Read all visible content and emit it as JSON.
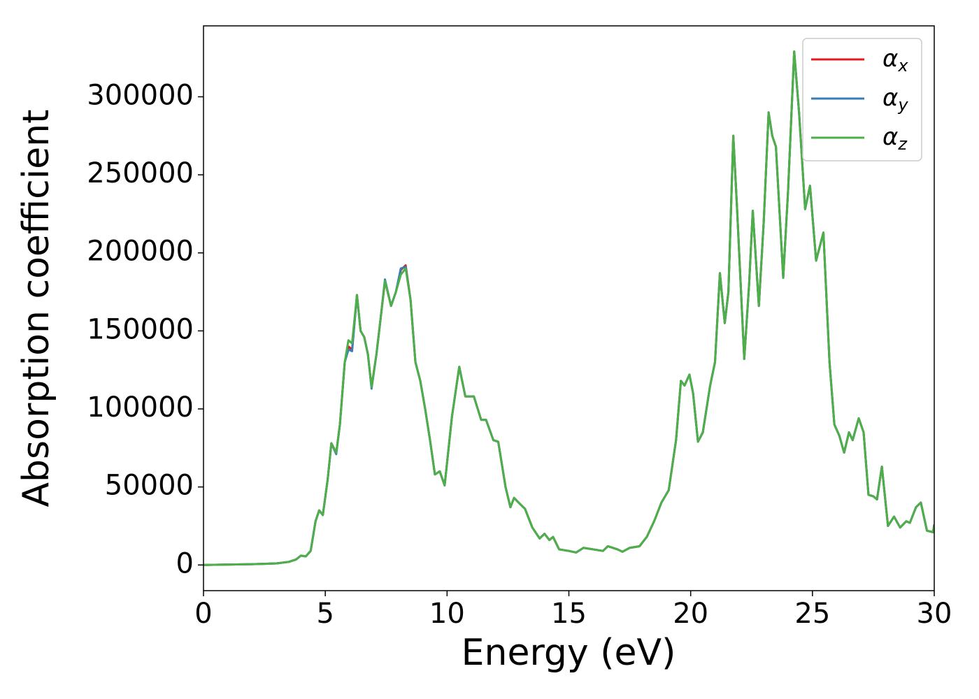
{
  "chart_data": {
    "type": "line",
    "x_label": "Energy (eV)",
    "y_label": "Absorption coefficient",
    "xlim": [
      0,
      30
    ],
    "xticks": [
      0,
      5,
      10,
      15,
      20,
      25,
      30
    ],
    "ylim": [
      -16450,
      345450
    ],
    "yticks": [
      0,
      50000,
      100000,
      150000,
      200000,
      250000,
      300000
    ],
    "legend": "upper right",
    "grid": false,
    "x": [
      0,
      2,
      3,
      3.5,
      3.8,
      4,
      4.2,
      4.4,
      4.6,
      4.75,
      4.9,
      5.1,
      5.25,
      5.45,
      5.6,
      5.8,
      5.95,
      6.1,
      6.3,
      6.45,
      6.6,
      6.75,
      6.9,
      7.1,
      7.25,
      7.45,
      7.7,
      7.9,
      8.1,
      8.3,
      8.5,
      8.7,
      8.9,
      9.1,
      9.3,
      9.5,
      9.7,
      9.9,
      10.2,
      10.5,
      10.75,
      11.1,
      11.4,
      11.6,
      11.9,
      12.1,
      12.4,
      12.6,
      12.75,
      13,
      13.2,
      13.5,
      13.8,
      14,
      14.2,
      14.35,
      14.6,
      15,
      15.3,
      15.6,
      16,
      16.4,
      16.6,
      17,
      17.2,
      17.5,
      17.9,
      18.2,
      18.5,
      18.8,
      19.1,
      19.4,
      19.6,
      19.75,
      19.95,
      20.1,
      20.3,
      20.5,
      20.8,
      21,
      21.2,
      21.4,
      21.55,
      21.75,
      21.9,
      22.2,
      22.4,
      22.55,
      22.8,
      23,
      23.2,
      23.35,
      23.5,
      23.8,
      24,
      24.25,
      24.45,
      24.7,
      24.9,
      25.15,
      25.45,
      25.7,
      25.9,
      26.1,
      26.3,
      26.5,
      26.65,
      26.9,
      27.1,
      27.3,
      27.5,
      27.65,
      27.85,
      28.1,
      28.35,
      28.6,
      28.85,
      29,
      29.25,
      29.45,
      29.7,
      29.95,
      30
    ],
    "series": [
      {
        "name": "αx",
        "color": "#e41a1c",
        "values": [
          0,
          500,
          1000,
          2000,
          3500,
          6000,
          5500,
          9000,
          28000,
          35000,
          32000,
          55000,
          78000,
          72000,
          90000,
          130000,
          140000,
          138000,
          173000,
          150000,
          146000,
          135000,
          114000,
          135000,
          155000,
          182000,
          166000,
          175000,
          189000,
          192000,
          170000,
          130000,
          118000,
          100000,
          80000,
          58000,
          60000,
          51000,
          95000,
          127000,
          108000,
          108000,
          93000,
          93000,
          80000,
          79000,
          50000,
          37000,
          43000,
          39000,
          36000,
          24000,
          17000,
          20000,
          16000,
          18000,
          10000,
          9000,
          8000,
          11000,
          10000,
          9000,
          12000,
          10000,
          8500,
          11000,
          12000,
          18000,
          28000,
          40000,
          48000,
          80000,
          118000,
          115000,
          122000,
          110000,
          79000,
          85000,
          115000,
          130000,
          187000,
          155000,
          175000,
          275000,
          230000,
          132000,
          180000,
          227000,
          166000,
          220000,
          290000,
          275000,
          268000,
          184000,
          240000,
          329000,
          290000,
          228000,
          243000,
          195000,
          213000,
          130000,
          90000,
          83000,
          72000,
          85000,
          80000,
          94000,
          85000,
          45000,
          44000,
          42000,
          63000,
          25000,
          31000,
          24000,
          28000,
          27000,
          37000,
          40000,
          22000,
          21000,
          26000
        ]
      },
      {
        "name": "αy",
        "color": "#377eb8",
        "values": [
          0,
          500,
          1000,
          2000,
          3500,
          6000,
          5500,
          9000,
          28000,
          35000,
          32000,
          55000,
          78000,
          71000,
          90000,
          130000,
          138000,
          137000,
          173000,
          150000,
          146000,
          135000,
          113000,
          135000,
          155000,
          183000,
          166000,
          175000,
          190000,
          191000,
          170000,
          130000,
          118000,
          100000,
          80000,
          58000,
          60000,
          51000,
          95000,
          127000,
          108000,
          108000,
          93000,
          93000,
          80000,
          79000,
          50000,
          37000,
          43000,
          39000,
          36000,
          24000,
          17000,
          20000,
          16000,
          18000,
          10000,
          9000,
          8000,
          11000,
          10000,
          9000,
          12000,
          10000,
          8500,
          11000,
          12000,
          18000,
          28000,
          40000,
          48000,
          80000,
          118000,
          115000,
          122000,
          110000,
          79000,
          85000,
          115000,
          130000,
          187000,
          155000,
          175000,
          275000,
          230000,
          132000,
          180000,
          227000,
          166000,
          220000,
          290000,
          275000,
          268000,
          184000,
          240000,
          329000,
          290000,
          228000,
          243000,
          195000,
          213000,
          130000,
          90000,
          83000,
          72000,
          85000,
          80000,
          94000,
          85000,
          45000,
          44000,
          42000,
          63000,
          25000,
          31000,
          24000,
          28000,
          27000,
          37000,
          40000,
          22000,
          21000,
          26000
        ]
      },
      {
        "name": "αz",
        "color": "#4daf4a",
        "values": [
          0,
          500,
          1000,
          2000,
          3500,
          6000,
          5500,
          9000,
          28000,
          35000,
          32000,
          55000,
          78000,
          72000,
          90000,
          130000,
          144000,
          142000,
          173000,
          150000,
          146000,
          135000,
          114000,
          135000,
          155000,
          182000,
          166000,
          175000,
          186000,
          190000,
          170000,
          130000,
          118000,
          100000,
          80000,
          58000,
          60000,
          51000,
          95000,
          127000,
          108000,
          108000,
          93000,
          93000,
          80000,
          79000,
          50000,
          37000,
          43000,
          39000,
          36000,
          24000,
          17000,
          20000,
          16000,
          18000,
          10000,
          9000,
          8000,
          11000,
          10000,
          9000,
          12000,
          10000,
          8500,
          11000,
          12000,
          18000,
          28000,
          40000,
          48000,
          80000,
          118000,
          115000,
          122000,
          110000,
          79000,
          85000,
          115000,
          130000,
          187000,
          155000,
          175000,
          275000,
          230000,
          132000,
          180000,
          227000,
          166000,
          220000,
          290000,
          275000,
          268000,
          184000,
          240000,
          329000,
          290000,
          228000,
          243000,
          195000,
          213000,
          130000,
          90000,
          83000,
          72000,
          85000,
          80000,
          94000,
          85000,
          45000,
          44000,
          42000,
          63000,
          25000,
          31000,
          24000,
          28000,
          27000,
          37000,
          40000,
          22000,
          21000,
          26000
        ]
      }
    ]
  }
}
